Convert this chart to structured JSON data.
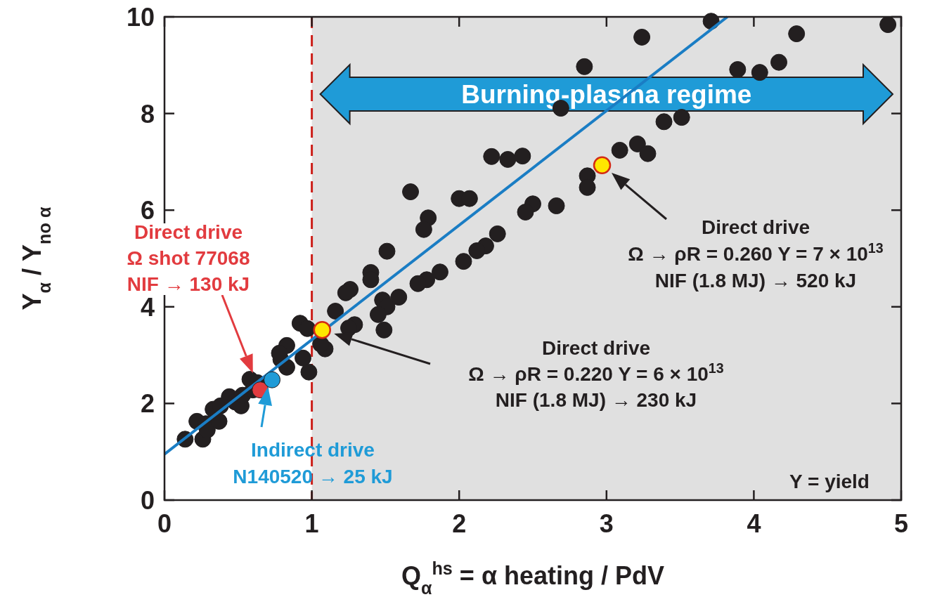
{
  "chart_data": {
    "type": "scatter",
    "xlabel": "Q$_{α}$$^{hs}$ = α heating / PdV",
    "ylabel": "Y$_{α}$ / Y$_{no α}$",
    "xlim": [
      0,
      5
    ],
    "xticks": [
      0,
      1,
      2,
      3,
      4,
      5
    ],
    "ylim": [
      0,
      10
    ],
    "yticks": [
      0,
      2,
      4,
      6,
      8,
      10
    ],
    "grid": false,
    "marker": "circle",
    "series": [
      {
        "color": "#231f20",
        "x": [
          0.14,
          0.22,
          0.26,
          0.28,
          0.29,
          0.33,
          0.37,
          0.38,
          0.44,
          0.48,
          0.52,
          0.53,
          0.58,
          0.6,
          0.63,
          0.79,
          0.83,
          0.78,
          0.83,
          0.94,
          0.98,
          0.92,
          0.97,
          1.09,
          1.06,
          1.51,
          1.4,
          1.4,
          1.26,
          1.23,
          1.16,
          1.29,
          1.25,
          1.48,
          1.51,
          1.45,
          1.49,
          1.59,
          2.22,
          2.33,
          2.43,
          1.67,
          2.0,
          2.07,
          1.79,
          1.76,
          2.5,
          2.45,
          2.66,
          2.26,
          2.18,
          2.12,
          2.03,
          1.87,
          1.78,
          1.72,
          3.71,
          3.24,
          4.29,
          4.91,
          2.85,
          3.89,
          4.04,
          4.17,
          2.69,
          3.39,
          3.51,
          3.09,
          3.21,
          3.28,
          2.87,
          2.87
        ],
        "values": [
          1.26,
          1.63,
          1.26,
          1.58,
          1.45,
          1.88,
          1.63,
          1.95,
          2.14,
          2.03,
          1.95,
          2.17,
          2.5,
          2.28,
          2.43,
          2.91,
          3.2,
          3.04,
          2.75,
          2.94,
          2.65,
          3.66,
          3.55,
          3.13,
          3.23,
          5.15,
          4.71,
          4.56,
          4.36,
          4.29,
          3.91,
          3.63,
          3.56,
          4.14,
          4.0,
          3.84,
          3.52,
          4.2,
          7.11,
          7.05,
          7.12,
          6.38,
          6.24,
          6.24,
          5.84,
          5.6,
          6.13,
          5.96,
          6.09,
          5.51,
          5.26,
          5.16,
          4.94,
          4.72,
          4.56,
          4.48,
          9.91,
          9.58,
          9.65,
          9.84,
          8.97,
          8.91,
          8.85,
          9.06,
          8.11,
          7.83,
          7.92,
          7.24,
          7.37,
          7.17,
          6.71,
          6.47
        ]
      },
      {
        "type": "line",
        "color": "#1a7dc4",
        "x": [
          0,
          3.82
        ],
        "values": [
          0.95,
          10
        ],
        "marker": "none"
      },
      {
        "color": "#e23b3f",
        "x": [
          0.65
        ],
        "values": [
          2.28
        ]
      },
      {
        "color": "#1f9bd7",
        "x": [
          0.73
        ],
        "values": [
          2.49
        ]
      },
      {
        "color": "#ffe600",
        "x": [
          1.07,
          2.97
        ],
        "values": [
          3.52,
          6.93
        ]
      }
    ],
    "ref_lines": [
      {
        "axis": "x",
        "value": 1,
        "color": "#cc1f1a",
        "line_style": "dashed"
      }
    ],
    "bands": [
      {
        "axis": "x",
        "from": 1,
        "to": 5,
        "label": "Burning-plasma regime",
        "color": "#e0e0e0"
      }
    ],
    "annotations": [
      "Direct drive\nΩ shot 77068\nNIF → 130 kJ",
      "Indirect drive\nN140520 → 25 kJ",
      "Direct drive\nΩ → ρR = 0.220 Y = 6 × 10$^{13}$\nNIF (1.8 MJ) → 230 kJ",
      "Direct drive\nΩ → ρR = 0.260 Y = 7 × 10$^{13}$\nNIF (1.8 MJ) → 520 kJ",
      "Y = yield"
    ]
  }
}
